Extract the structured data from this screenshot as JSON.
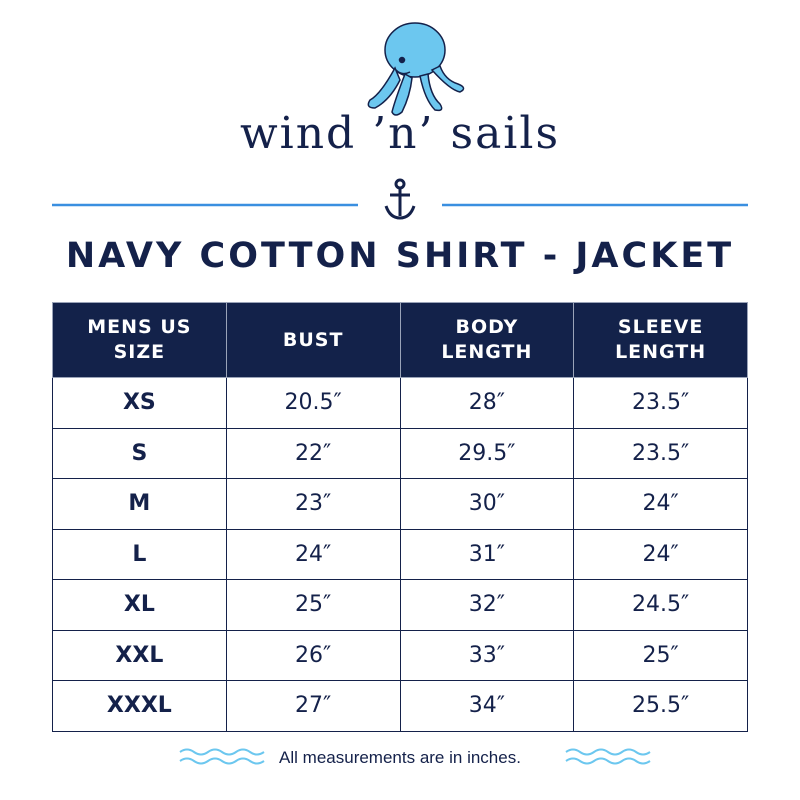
{
  "brand": "wind ’n’ sails",
  "title": "NAVY COTTON SHIRT - JACKET",
  "table": {
    "headers": [
      "MENS US SIZE",
      "BUST",
      "BODY LENGTH",
      "SLEEVE LENGTH"
    ],
    "rows": [
      [
        "XS",
        "20.5″",
        "28″",
        "23.5″"
      ],
      [
        "S",
        "22″",
        "29.5″",
        "23.5″"
      ],
      [
        "M",
        "23″",
        "30″",
        "24″"
      ],
      [
        "L",
        "24″",
        "31″",
        "24″"
      ],
      [
        "XL",
        "25″",
        "32″",
        "24.5″"
      ],
      [
        "XXL",
        "26″",
        "33″",
        "25″"
      ],
      [
        "XXXL",
        "27″",
        "34″",
        "25.5″"
      ]
    ]
  },
  "footnote": "All measurements are in inches."
}
